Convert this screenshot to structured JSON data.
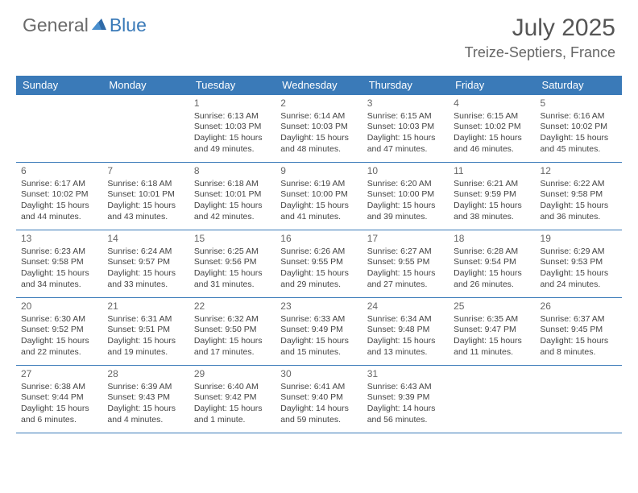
{
  "logo": {
    "word1": "General",
    "word2": "Blue"
  },
  "title": "July 2025",
  "location": "Treize-Septiers, France",
  "colors": {
    "header_bg": "#3a7ab8",
    "header_text": "#ffffff",
    "border": "#3a7ab8",
    "text": "#444444",
    "logo_gray": "#6a6a6a",
    "logo_blue": "#3a7ab8",
    "page_bg": "#ffffff"
  },
  "day_names": [
    "Sunday",
    "Monday",
    "Tuesday",
    "Wednesday",
    "Thursday",
    "Friday",
    "Saturday"
  ],
  "weeks": [
    [
      null,
      null,
      {
        "n": "1",
        "sr": "Sunrise: 6:13 AM",
        "ss": "Sunset: 10:03 PM",
        "d1": "Daylight: 15 hours",
        "d2": "and 49 minutes."
      },
      {
        "n": "2",
        "sr": "Sunrise: 6:14 AM",
        "ss": "Sunset: 10:03 PM",
        "d1": "Daylight: 15 hours",
        "d2": "and 48 minutes."
      },
      {
        "n": "3",
        "sr": "Sunrise: 6:15 AM",
        "ss": "Sunset: 10:03 PM",
        "d1": "Daylight: 15 hours",
        "d2": "and 47 minutes."
      },
      {
        "n": "4",
        "sr": "Sunrise: 6:15 AM",
        "ss": "Sunset: 10:02 PM",
        "d1": "Daylight: 15 hours",
        "d2": "and 46 minutes."
      },
      {
        "n": "5",
        "sr": "Sunrise: 6:16 AM",
        "ss": "Sunset: 10:02 PM",
        "d1": "Daylight: 15 hours",
        "d2": "and 45 minutes."
      }
    ],
    [
      {
        "n": "6",
        "sr": "Sunrise: 6:17 AM",
        "ss": "Sunset: 10:02 PM",
        "d1": "Daylight: 15 hours",
        "d2": "and 44 minutes."
      },
      {
        "n": "7",
        "sr": "Sunrise: 6:18 AM",
        "ss": "Sunset: 10:01 PM",
        "d1": "Daylight: 15 hours",
        "d2": "and 43 minutes."
      },
      {
        "n": "8",
        "sr": "Sunrise: 6:18 AM",
        "ss": "Sunset: 10:01 PM",
        "d1": "Daylight: 15 hours",
        "d2": "and 42 minutes."
      },
      {
        "n": "9",
        "sr": "Sunrise: 6:19 AM",
        "ss": "Sunset: 10:00 PM",
        "d1": "Daylight: 15 hours",
        "d2": "and 41 minutes."
      },
      {
        "n": "10",
        "sr": "Sunrise: 6:20 AM",
        "ss": "Sunset: 10:00 PM",
        "d1": "Daylight: 15 hours",
        "d2": "and 39 minutes."
      },
      {
        "n": "11",
        "sr": "Sunrise: 6:21 AM",
        "ss": "Sunset: 9:59 PM",
        "d1": "Daylight: 15 hours",
        "d2": "and 38 minutes."
      },
      {
        "n": "12",
        "sr": "Sunrise: 6:22 AM",
        "ss": "Sunset: 9:58 PM",
        "d1": "Daylight: 15 hours",
        "d2": "and 36 minutes."
      }
    ],
    [
      {
        "n": "13",
        "sr": "Sunrise: 6:23 AM",
        "ss": "Sunset: 9:58 PM",
        "d1": "Daylight: 15 hours",
        "d2": "and 34 minutes."
      },
      {
        "n": "14",
        "sr": "Sunrise: 6:24 AM",
        "ss": "Sunset: 9:57 PM",
        "d1": "Daylight: 15 hours",
        "d2": "and 33 minutes."
      },
      {
        "n": "15",
        "sr": "Sunrise: 6:25 AM",
        "ss": "Sunset: 9:56 PM",
        "d1": "Daylight: 15 hours",
        "d2": "and 31 minutes."
      },
      {
        "n": "16",
        "sr": "Sunrise: 6:26 AM",
        "ss": "Sunset: 9:55 PM",
        "d1": "Daylight: 15 hours",
        "d2": "and 29 minutes."
      },
      {
        "n": "17",
        "sr": "Sunrise: 6:27 AM",
        "ss": "Sunset: 9:55 PM",
        "d1": "Daylight: 15 hours",
        "d2": "and 27 minutes."
      },
      {
        "n": "18",
        "sr": "Sunrise: 6:28 AM",
        "ss": "Sunset: 9:54 PM",
        "d1": "Daylight: 15 hours",
        "d2": "and 26 minutes."
      },
      {
        "n": "19",
        "sr": "Sunrise: 6:29 AM",
        "ss": "Sunset: 9:53 PM",
        "d1": "Daylight: 15 hours",
        "d2": "and 24 minutes."
      }
    ],
    [
      {
        "n": "20",
        "sr": "Sunrise: 6:30 AM",
        "ss": "Sunset: 9:52 PM",
        "d1": "Daylight: 15 hours",
        "d2": "and 22 minutes."
      },
      {
        "n": "21",
        "sr": "Sunrise: 6:31 AM",
        "ss": "Sunset: 9:51 PM",
        "d1": "Daylight: 15 hours",
        "d2": "and 19 minutes."
      },
      {
        "n": "22",
        "sr": "Sunrise: 6:32 AM",
        "ss": "Sunset: 9:50 PM",
        "d1": "Daylight: 15 hours",
        "d2": "and 17 minutes."
      },
      {
        "n": "23",
        "sr": "Sunrise: 6:33 AM",
        "ss": "Sunset: 9:49 PM",
        "d1": "Daylight: 15 hours",
        "d2": "and 15 minutes."
      },
      {
        "n": "24",
        "sr": "Sunrise: 6:34 AM",
        "ss": "Sunset: 9:48 PM",
        "d1": "Daylight: 15 hours",
        "d2": "and 13 minutes."
      },
      {
        "n": "25",
        "sr": "Sunrise: 6:35 AM",
        "ss": "Sunset: 9:47 PM",
        "d1": "Daylight: 15 hours",
        "d2": "and 11 minutes."
      },
      {
        "n": "26",
        "sr": "Sunrise: 6:37 AM",
        "ss": "Sunset: 9:45 PM",
        "d1": "Daylight: 15 hours",
        "d2": "and 8 minutes."
      }
    ],
    [
      {
        "n": "27",
        "sr": "Sunrise: 6:38 AM",
        "ss": "Sunset: 9:44 PM",
        "d1": "Daylight: 15 hours",
        "d2": "and 6 minutes."
      },
      {
        "n": "28",
        "sr": "Sunrise: 6:39 AM",
        "ss": "Sunset: 9:43 PM",
        "d1": "Daylight: 15 hours",
        "d2": "and 4 minutes."
      },
      {
        "n": "29",
        "sr": "Sunrise: 6:40 AM",
        "ss": "Sunset: 9:42 PM",
        "d1": "Daylight: 15 hours",
        "d2": "and 1 minute."
      },
      {
        "n": "30",
        "sr": "Sunrise: 6:41 AM",
        "ss": "Sunset: 9:40 PM",
        "d1": "Daylight: 14 hours",
        "d2": "and 59 minutes."
      },
      {
        "n": "31",
        "sr": "Sunrise: 6:43 AM",
        "ss": "Sunset: 9:39 PM",
        "d1": "Daylight: 14 hours",
        "d2": "and 56 minutes."
      },
      null,
      null
    ]
  ]
}
